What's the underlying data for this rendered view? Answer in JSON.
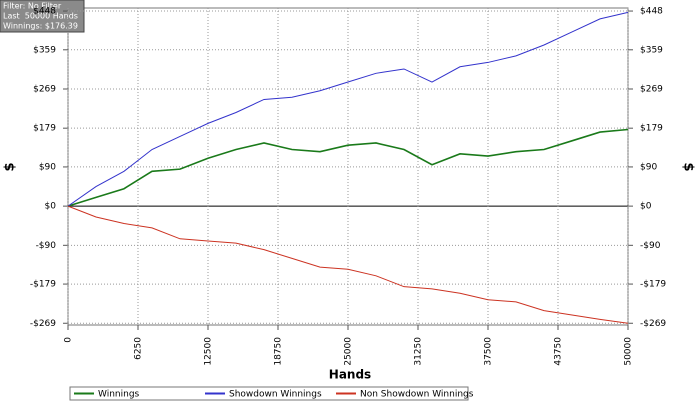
{
  "chart_data": {
    "type": "line",
    "annotations": [
      "Filter: No Filter",
      "Last  50000 Hands",
      "Winnings: $176.39"
    ],
    "x_label": "Hands",
    "y_label": "$",
    "x": [
      0,
      2500,
      5000,
      7500,
      10000,
      12500,
      15000,
      17500,
      20000,
      22500,
      25000,
      27500,
      30000,
      32500,
      35000,
      37500,
      40000,
      42500,
      45000,
      47500,
      50000
    ],
    "series": [
      {
        "name": "Winnings",
        "color": "#1a7a1a",
        "values": [
          0,
          20,
          40,
          80,
          85,
          110,
          130,
          145,
          130,
          125,
          140,
          145,
          130,
          95,
          120,
          115,
          125,
          130,
          150,
          170,
          176
        ]
      },
      {
        "name": "Showdown Winnings",
        "color": "#3333cc",
        "values": [
          0,
          45,
          80,
          130,
          160,
          190,
          215,
          245,
          250,
          265,
          285,
          305,
          315,
          285,
          320,
          330,
          345,
          370,
          400,
          430,
          445
        ]
      },
      {
        "name": "Non Showdown Winnings",
        "color": "#cc3322",
        "values": [
          0,
          -25,
          -40,
          -50,
          -75,
          -80,
          -85,
          -100,
          -120,
          -140,
          -145,
          -160,
          -185,
          -190,
          -200,
          -215,
          -220,
          -240,
          -250,
          -260,
          -269
        ]
      }
    ],
    "xlim": [
      0,
      50000
    ],
    "xticks": [
      0,
      6250,
      12500,
      18750,
      25000,
      31250,
      37500,
      43750,
      50000
    ],
    "ylim": [
      -273,
      455
    ],
    "yticks": [
      {
        "value": -269,
        "label": "-$269"
      },
      {
        "value": -179,
        "label": "-$179"
      },
      {
        "value": -90,
        "label": "-$90"
      },
      {
        "value": 0,
        "label": "$0"
      },
      {
        "value": 90,
        "label": "$90"
      },
      {
        "value": 179,
        "label": "$179"
      },
      {
        "value": 269,
        "label": "$269"
      },
      {
        "value": 359,
        "label": "$359"
      },
      {
        "value": 448,
        "label": "$448"
      }
    ],
    "grid": true
  }
}
